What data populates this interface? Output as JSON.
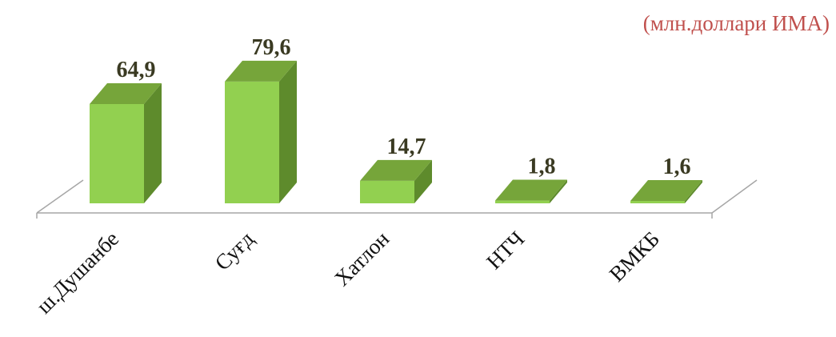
{
  "unit_note": "(млн.доллари ИМА)",
  "colors": {
    "bar_front": "#92d050",
    "bar_top": "#76a53a",
    "bar_side": "#5e8b2c",
    "floor_line": "#a6a6a6",
    "value_label": "#3a3a22",
    "unit_note": "#c0504d"
  },
  "chart_data": {
    "type": "bar",
    "style": "3d-column",
    "categories": [
      "ш.Душанбе",
      "Суғд",
      "Хатлон",
      "НТЧ",
      "ВМКБ"
    ],
    "values": [
      64.9,
      79.6,
      14.7,
      1.8,
      1.6
    ],
    "value_labels": [
      "64,9",
      "79,6",
      "14,7",
      "1,8",
      "1,6"
    ],
    "title": "",
    "xlabel": "",
    "ylabel": "",
    "ylim": [
      0,
      80
    ],
    "grid": false,
    "legend": "none"
  }
}
